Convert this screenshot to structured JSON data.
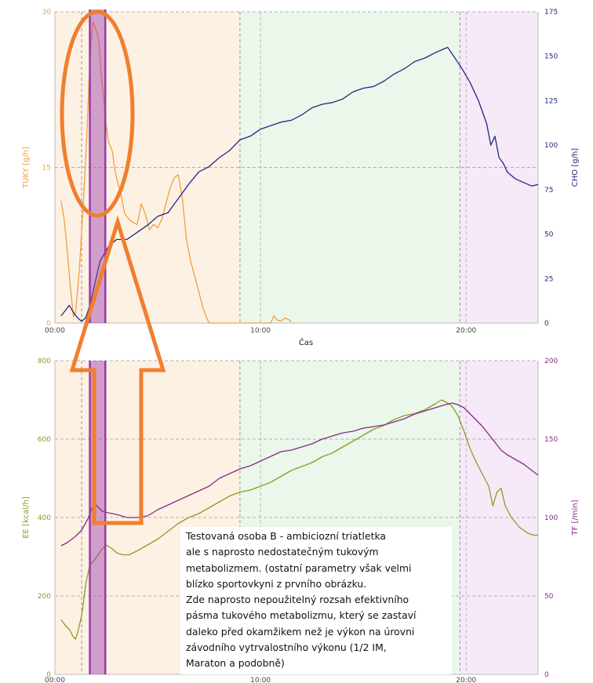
{
  "colors": {
    "tuky": "#f0a040",
    "cho": "#1f2a80",
    "ee": "#8f9a26",
    "tf": "#8a2a8a",
    "annotation": "#ef7f2e",
    "marker": "#9a3aa8",
    "zone_peach": "#fdf1e4",
    "zone_green": "#eaf7ea",
    "zone_purple": "#f6e9f8"
  },
  "annotation": {
    "lines": [
      "Testovaná osoba B - ambiciozní triatletka",
      "ale s naprosto nedostatečným tukovým",
      "metabolizmem. (ostatní parametry však velmi",
      "blízko sportovkyni z prvního obrázku.",
      "Zde naprosto nepoužitelný rozsah efektivního",
      "pásma tukového metabolizmu, který se zastaví",
      "daleko před okamžikem než je výkon na úrovni",
      "závodního vytrvalostního výkonu (1/2 IM,",
      "Maraton a podobně)"
    ]
  },
  "chart_data": [
    {
      "type": "line",
      "xlabel": "Čas",
      "x_ticks": [
        "00:00",
        "10:00",
        "20:00"
      ],
      "x_range_min": [
        0,
        23.5
      ],
      "left_axis": {
        "label": "TUKY [g/h]",
        "ticks": [
          "0",
          "15",
          "30"
        ],
        "range": [
          0,
          30
        ]
      },
      "right_axis": {
        "label": "CHO [g/h]",
        "ticks": [
          "0",
          "25",
          "50",
          "75",
          "100",
          "125",
          "150",
          "175"
        ],
        "range": [
          0,
          175
        ]
      },
      "zones_min": [
        [
          0,
          1.3,
          "peach"
        ],
        [
          1.3,
          9,
          "peach"
        ],
        [
          9,
          19.7,
          "green"
        ],
        [
          19.7,
          23.5,
          "purple"
        ]
      ],
      "markers_min": [
        1.7,
        2.45
      ],
      "series": [
        {
          "name": "TUKY",
          "axis": "left",
          "x": [
            0.3,
            0.45,
            0.6,
            0.75,
            0.9,
            1.0,
            1.1,
            1.2,
            1.35,
            1.45,
            1.55,
            1.65,
            1.75,
            1.85,
            1.95,
            2.05,
            2.15,
            2.25,
            2.4,
            2.5,
            2.6,
            2.7,
            2.8,
            2.9,
            3.0,
            3.2,
            3.4,
            3.6,
            3.8,
            4.0,
            4.2,
            4.4,
            4.6,
            4.8,
            5.0,
            5.2,
            5.4,
            5.6,
            5.8,
            6.0,
            6.2,
            6.4,
            6.6,
            6.8,
            7.0,
            7.2,
            7.4,
            7.5,
            10.5,
            10.65,
            10.8,
            11.0,
            11.2,
            11.4,
            11.5
          ],
          "values": [
            11.8,
            10,
            7,
            3.5,
            0.6,
            1,
            3,
            5.5,
            10.5,
            14,
            18,
            23,
            27,
            29,
            28.5,
            28,
            27,
            24,
            21,
            19,
            17.5,
            17,
            16.5,
            15,
            14,
            12.5,
            10.5,
            10,
            9.7,
            9.5,
            11.5,
            10.5,
            9,
            9.5,
            9.2,
            10,
            11.5,
            13,
            14,
            14.3,
            12,
            8,
            6,
            4.5,
            3,
            1.5,
            0.4,
            0,
            0,
            0.7,
            0.3,
            0.2,
            0.5,
            0.3,
            0.1
          ]
        },
        {
          "name": "CHO",
          "axis": "right",
          "x": [
            0.3,
            0.5,
            0.7,
            0.9,
            1.1,
            1.3,
            1.5,
            1.7,
            1.9,
            2.2,
            2.6,
            3.0,
            3.5,
            4.0,
            4.5,
            5.0,
            5.5,
            6.0,
            6.5,
            7.0,
            7.5,
            8.0,
            8.5,
            9.0,
            9.5,
            10.0,
            10.5,
            11.0,
            11.5,
            12.0,
            12.5,
            13.0,
            13.5,
            14.0,
            14.5,
            15.0,
            15.5,
            16.0,
            16.5,
            17.0,
            17.5,
            18.0,
            18.5,
            18.9,
            19.1,
            19.4,
            19.8,
            20.2,
            20.6,
            21.0,
            21.2,
            21.4,
            21.6,
            21.8,
            22.0,
            22.4,
            22.8,
            23.2,
            23.5
          ],
          "values": [
            4,
            7,
            10,
            6,
            3,
            1,
            3,
            10,
            20,
            35,
            43,
            47,
            47,
            51,
            55,
            60,
            62,
            70,
            78,
            85,
            88,
            93,
            97,
            103,
            105,
            109,
            111,
            113,
            114,
            117,
            121,
            123,
            124,
            126,
            130,
            132,
            133,
            136,
            140,
            143,
            147,
            149,
            152,
            154,
            155,
            150,
            143,
            135,
            125,
            112,
            100,
            105,
            93,
            90,
            85,
            81,
            79,
            77,
            78
          ]
        }
      ]
    },
    {
      "type": "line",
      "xlabel": "",
      "x_ticks": [
        "00:00",
        "10:00",
        "20:00"
      ],
      "x_range_min": [
        0,
        23.5
      ],
      "left_axis": {
        "label": "EE [kcal/h]",
        "ticks": [
          "0",
          "200",
          "400",
          "600",
          "800"
        ],
        "range": [
          0,
          800
        ]
      },
      "right_axis": {
        "label": "TF [/min]",
        "ticks": [
          "0",
          "50",
          "100",
          "150",
          "200"
        ],
        "range": [
          0,
          200
        ]
      },
      "zones_min": [
        [
          0,
          1.3,
          "peach"
        ],
        [
          1.3,
          9,
          "peach"
        ],
        [
          9,
          19.7,
          "green"
        ],
        [
          19.7,
          23.5,
          "purple"
        ]
      ],
      "markers_min": [
        1.7,
        2.45
      ],
      "series": [
        {
          "name": "EE",
          "axis": "left",
          "x": [
            0.3,
            0.5,
            0.7,
            0.9,
            1.0,
            1.1,
            1.3,
            1.5,
            1.7,
            1.9,
            2.1,
            2.3,
            2.5,
            2.8,
            3.0,
            3.3,
            3.6,
            4.0,
            4.5,
            5.0,
            5.5,
            6.0,
            6.5,
            7.0,
            7.5,
            8.0,
            8.5,
            9.0,
            9.5,
            10.0,
            10.5,
            11.0,
            11.5,
            12.0,
            12.5,
            13.0,
            13.5,
            14.0,
            14.5,
            15.0,
            15.5,
            16.0,
            16.5,
            17.0,
            17.5,
            18.0,
            18.5,
            18.8,
            19.0,
            19.3,
            19.6,
            19.9,
            20.2,
            20.5,
            20.8,
            21.1,
            21.3,
            21.5,
            21.7,
            21.9,
            22.2,
            22.6,
            23.0,
            23.3,
            23.5
          ],
          "values": [
            140,
            125,
            115,
            95,
            90,
            105,
            150,
            230,
            280,
            290,
            305,
            320,
            330,
            320,
            310,
            305,
            305,
            315,
            330,
            345,
            365,
            385,
            400,
            410,
            425,
            440,
            455,
            465,
            470,
            480,
            490,
            505,
            520,
            530,
            540,
            555,
            565,
            580,
            595,
            610,
            625,
            635,
            650,
            660,
            665,
            675,
            690,
            700,
            695,
            685,
            660,
            620,
            575,
            540,
            510,
            480,
            430,
            465,
            475,
            430,
            400,
            375,
            360,
            355,
            355
          ]
        },
        {
          "name": "TF",
          "axis": "right",
          "x": [
            0.3,
            0.6,
            1.0,
            1.3,
            1.6,
            1.8,
            2.0,
            2.3,
            2.6,
            3.0,
            3.5,
            4.0,
            4.5,
            5.0,
            5.5,
            6.0,
            6.5,
            7.0,
            7.5,
            8.0,
            8.5,
            9.0,
            9.5,
            10.0,
            10.5,
            11.0,
            11.5,
            12.0,
            12.5,
            13.0,
            13.5,
            14.0,
            14.5,
            15.0,
            15.5,
            16.0,
            16.5,
            17.0,
            17.5,
            18.0,
            18.5,
            19.0,
            19.3,
            19.6,
            19.9,
            20.2,
            20.5,
            20.8,
            21.1,
            21.4,
            21.7,
            22.0,
            22.4,
            22.8,
            23.2,
            23.5
          ],
          "values": [
            82,
            84,
            88,
            92,
            99,
            106,
            108,
            104,
            103,
            102,
            100,
            100,
            101,
            105,
            108,
            111,
            114,
            117,
            120,
            125,
            128,
            131,
            133,
            136,
            139,
            142,
            143,
            145,
            147,
            150,
            152,
            154,
            155,
            157,
            158,
            159,
            161,
            163,
            166,
            168,
            170,
            172,
            173,
            172,
            170,
            166,
            162,
            158,
            153,
            148,
            143,
            140,
            137,
            134,
            130,
            127
          ]
        }
      ]
    }
  ]
}
